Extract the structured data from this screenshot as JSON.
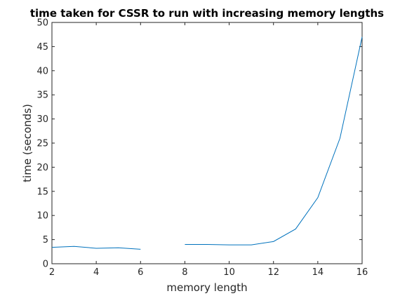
{
  "chart_data": {
    "type": "line",
    "title": "time taken for CSSR to run with increasing memory lengths",
    "xlabel": "memory length",
    "ylabel": "time (seconds)",
    "xlim": [
      2,
      16
    ],
    "ylim": [
      0,
      50
    ],
    "xticks": [
      2,
      4,
      6,
      8,
      10,
      12,
      14,
      16
    ],
    "yticks": [
      0,
      5,
      10,
      15,
      20,
      25,
      30,
      35,
      40,
      45,
      50
    ],
    "grid": false,
    "legend": "none",
    "series": [
      {
        "color": "#0072BD",
        "segments": [
          {
            "x": [
              2,
              3,
              4,
              5,
              6
            ],
            "y": [
              3.4,
              3.6,
              3.2,
              3.3,
              3.0
            ]
          },
          {
            "x": [
              8,
              9,
              10,
              11,
              12,
              13,
              14,
              15,
              16
            ],
            "y": [
              4.0,
              4.0,
              3.9,
              3.9,
              4.6,
              7.2,
              13.7,
              26.0,
              47.0
            ]
          }
        ]
      }
    ]
  }
}
